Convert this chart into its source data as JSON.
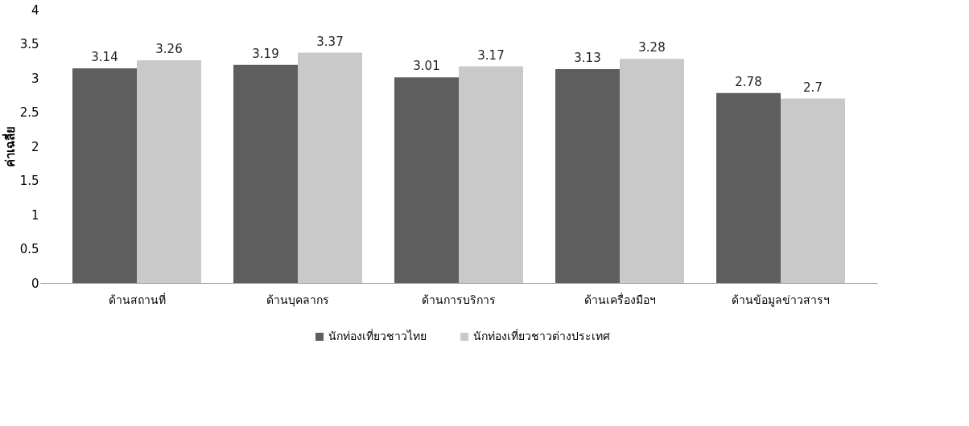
{
  "chart_data": {
    "type": "bar",
    "ylabel": "ค่าเฉลี่ย",
    "categories": [
      "ด้านสถานที่",
      "ด้านบุคลากร",
      "ด้านการบริการ",
      "ด้านเครื่องมือฯ",
      "ด้านข้อมูลข่าวสารฯ"
    ],
    "series": [
      {
        "name": "นักท่องเที่ยวชาวไทย",
        "color": "#5e5e5e",
        "values": [
          3.14,
          3.19,
          3.01,
          3.13,
          2.78
        ]
      },
      {
        "name": "นักท่องเที่ยวชาวต่างประเทศ",
        "color": "#c9c9c9",
        "values": [
          3.26,
          3.37,
          3.17,
          3.28,
          2.7
        ]
      }
    ],
    "ylim": [
      0,
      4
    ],
    "yticks": [
      0,
      0.5,
      1,
      1.5,
      2,
      2.5,
      3,
      3.5,
      4
    ],
    "grid": false,
    "legend": "bottom",
    "data_labels": true
  }
}
